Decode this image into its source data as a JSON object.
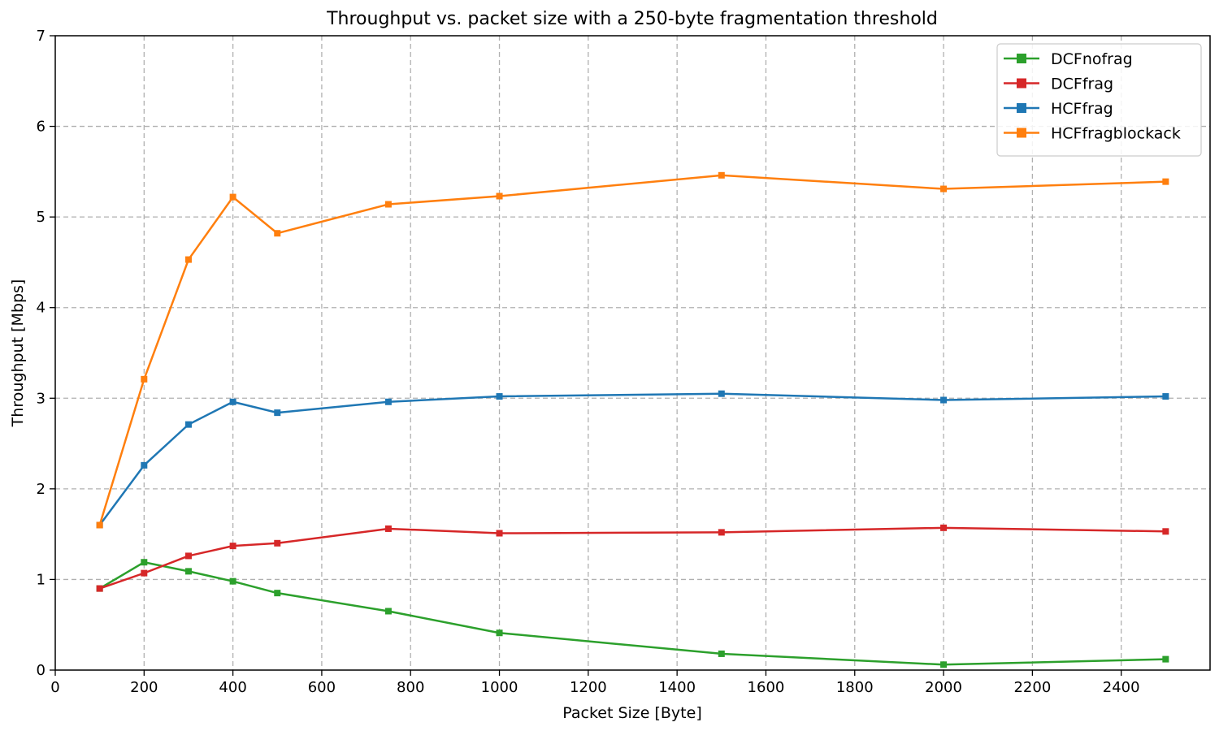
{
  "chart_data": {
    "type": "line",
    "title": "Throughput vs. packet size with a 250-byte fragmentation threshold",
    "xlabel": "Packet Size [Byte]",
    "ylabel": "Throughput [Mbps]",
    "xlim": [
      0,
      2600
    ],
    "ylim": [
      0,
      7
    ],
    "xticks": [
      0,
      200,
      400,
      600,
      800,
      1000,
      1200,
      1400,
      1600,
      1800,
      2000,
      2200,
      2400
    ],
    "yticks": [
      0,
      1,
      2,
      3,
      4,
      5,
      6,
      7
    ],
    "grid": true,
    "legend_position": "top-right",
    "x": [
      100,
      200,
      300,
      400,
      500,
      750,
      1000,
      1500,
      2000,
      2500
    ],
    "series": [
      {
        "name": "DCFnofrag",
        "color": "#2ca02c",
        "values": [
          0.9,
          1.19,
          1.09,
          0.98,
          0.85,
          0.65,
          0.41,
          0.18,
          0.06,
          0.12
        ]
      },
      {
        "name": "DCFfrag",
        "color": "#d62728",
        "values": [
          0.9,
          1.07,
          1.26,
          1.37,
          1.4,
          1.56,
          1.51,
          1.52,
          1.57,
          1.53
        ]
      },
      {
        "name": "HCFfrag",
        "color": "#1f77b4",
        "values": [
          1.6,
          2.26,
          2.71,
          2.96,
          2.84,
          2.96,
          3.02,
          3.05,
          2.98,
          3.02
        ]
      },
      {
        "name": "HCFfragblockack",
        "color": "#ff7f0e",
        "values": [
          1.6,
          3.21,
          4.53,
          5.22,
          4.82,
          5.14,
          5.23,
          5.46,
          5.31,
          5.39
        ]
      }
    ]
  }
}
